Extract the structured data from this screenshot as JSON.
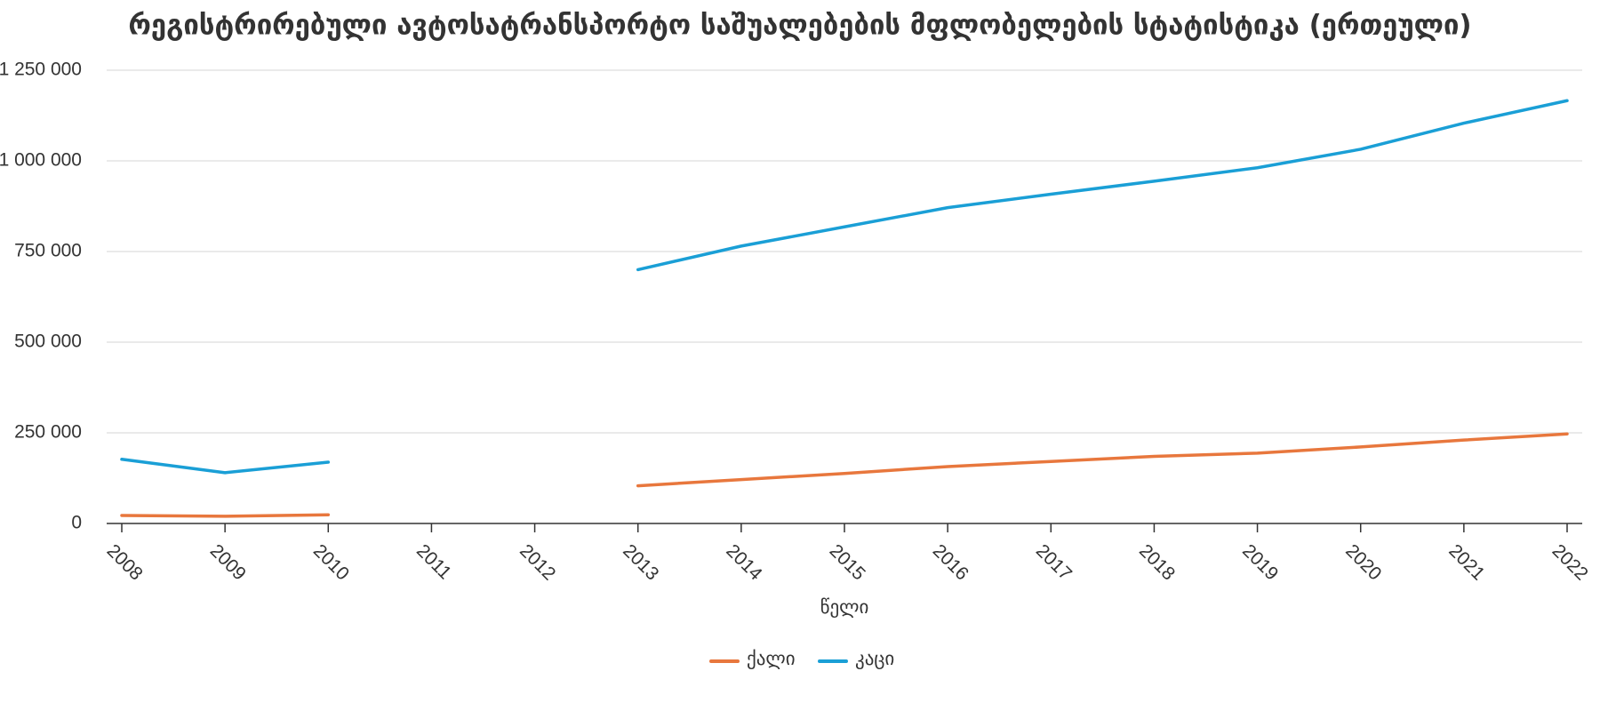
{
  "chart_data": {
    "type": "line",
    "title": "რეგისტრირებული ავტოსატრანსპორტო საშუალებების მფლობელების სტატისტიკა (ერთეული)",
    "x_label": "წელი",
    "categories": [
      "2008",
      "2009",
      "2010",
      "2011",
      "2012",
      "2013",
      "2014",
      "2015",
      "2016",
      "2017",
      "2018",
      "2019",
      "2020",
      "2021",
      "2022"
    ],
    "series": [
      {
        "name": "ქალი",
        "color": "#e8773d",
        "values": [
          22000,
          20000,
          24000,
          null,
          null,
          104000,
          121000,
          138000,
          157000,
          171000,
          185000,
          194000,
          211000,
          230000,
          247000
        ]
      },
      {
        "name": "კაცი",
        "color": "#1a9fd6",
        "values": [
          177000,
          140000,
          169000,
          null,
          null,
          700000,
          765000,
          818000,
          871000,
          908000,
          944000,
          981000,
          1032000,
          1104000,
          1166000
        ]
      }
    ],
    "ylim": [
      0,
      1250000
    ],
    "yticks": [
      0,
      {
        "value": 250000,
        "label": "250 000"
      },
      {
        "value": 500000,
        "label": "500 000"
      },
      {
        "value": 750000,
        "label": "750 000"
      },
      {
        "value": 1000000,
        "label": "1 000 000"
      },
      {
        "value": 1250000,
        "label": "1 250 000"
      }
    ],
    "grid": true,
    "legend": "bottom"
  }
}
